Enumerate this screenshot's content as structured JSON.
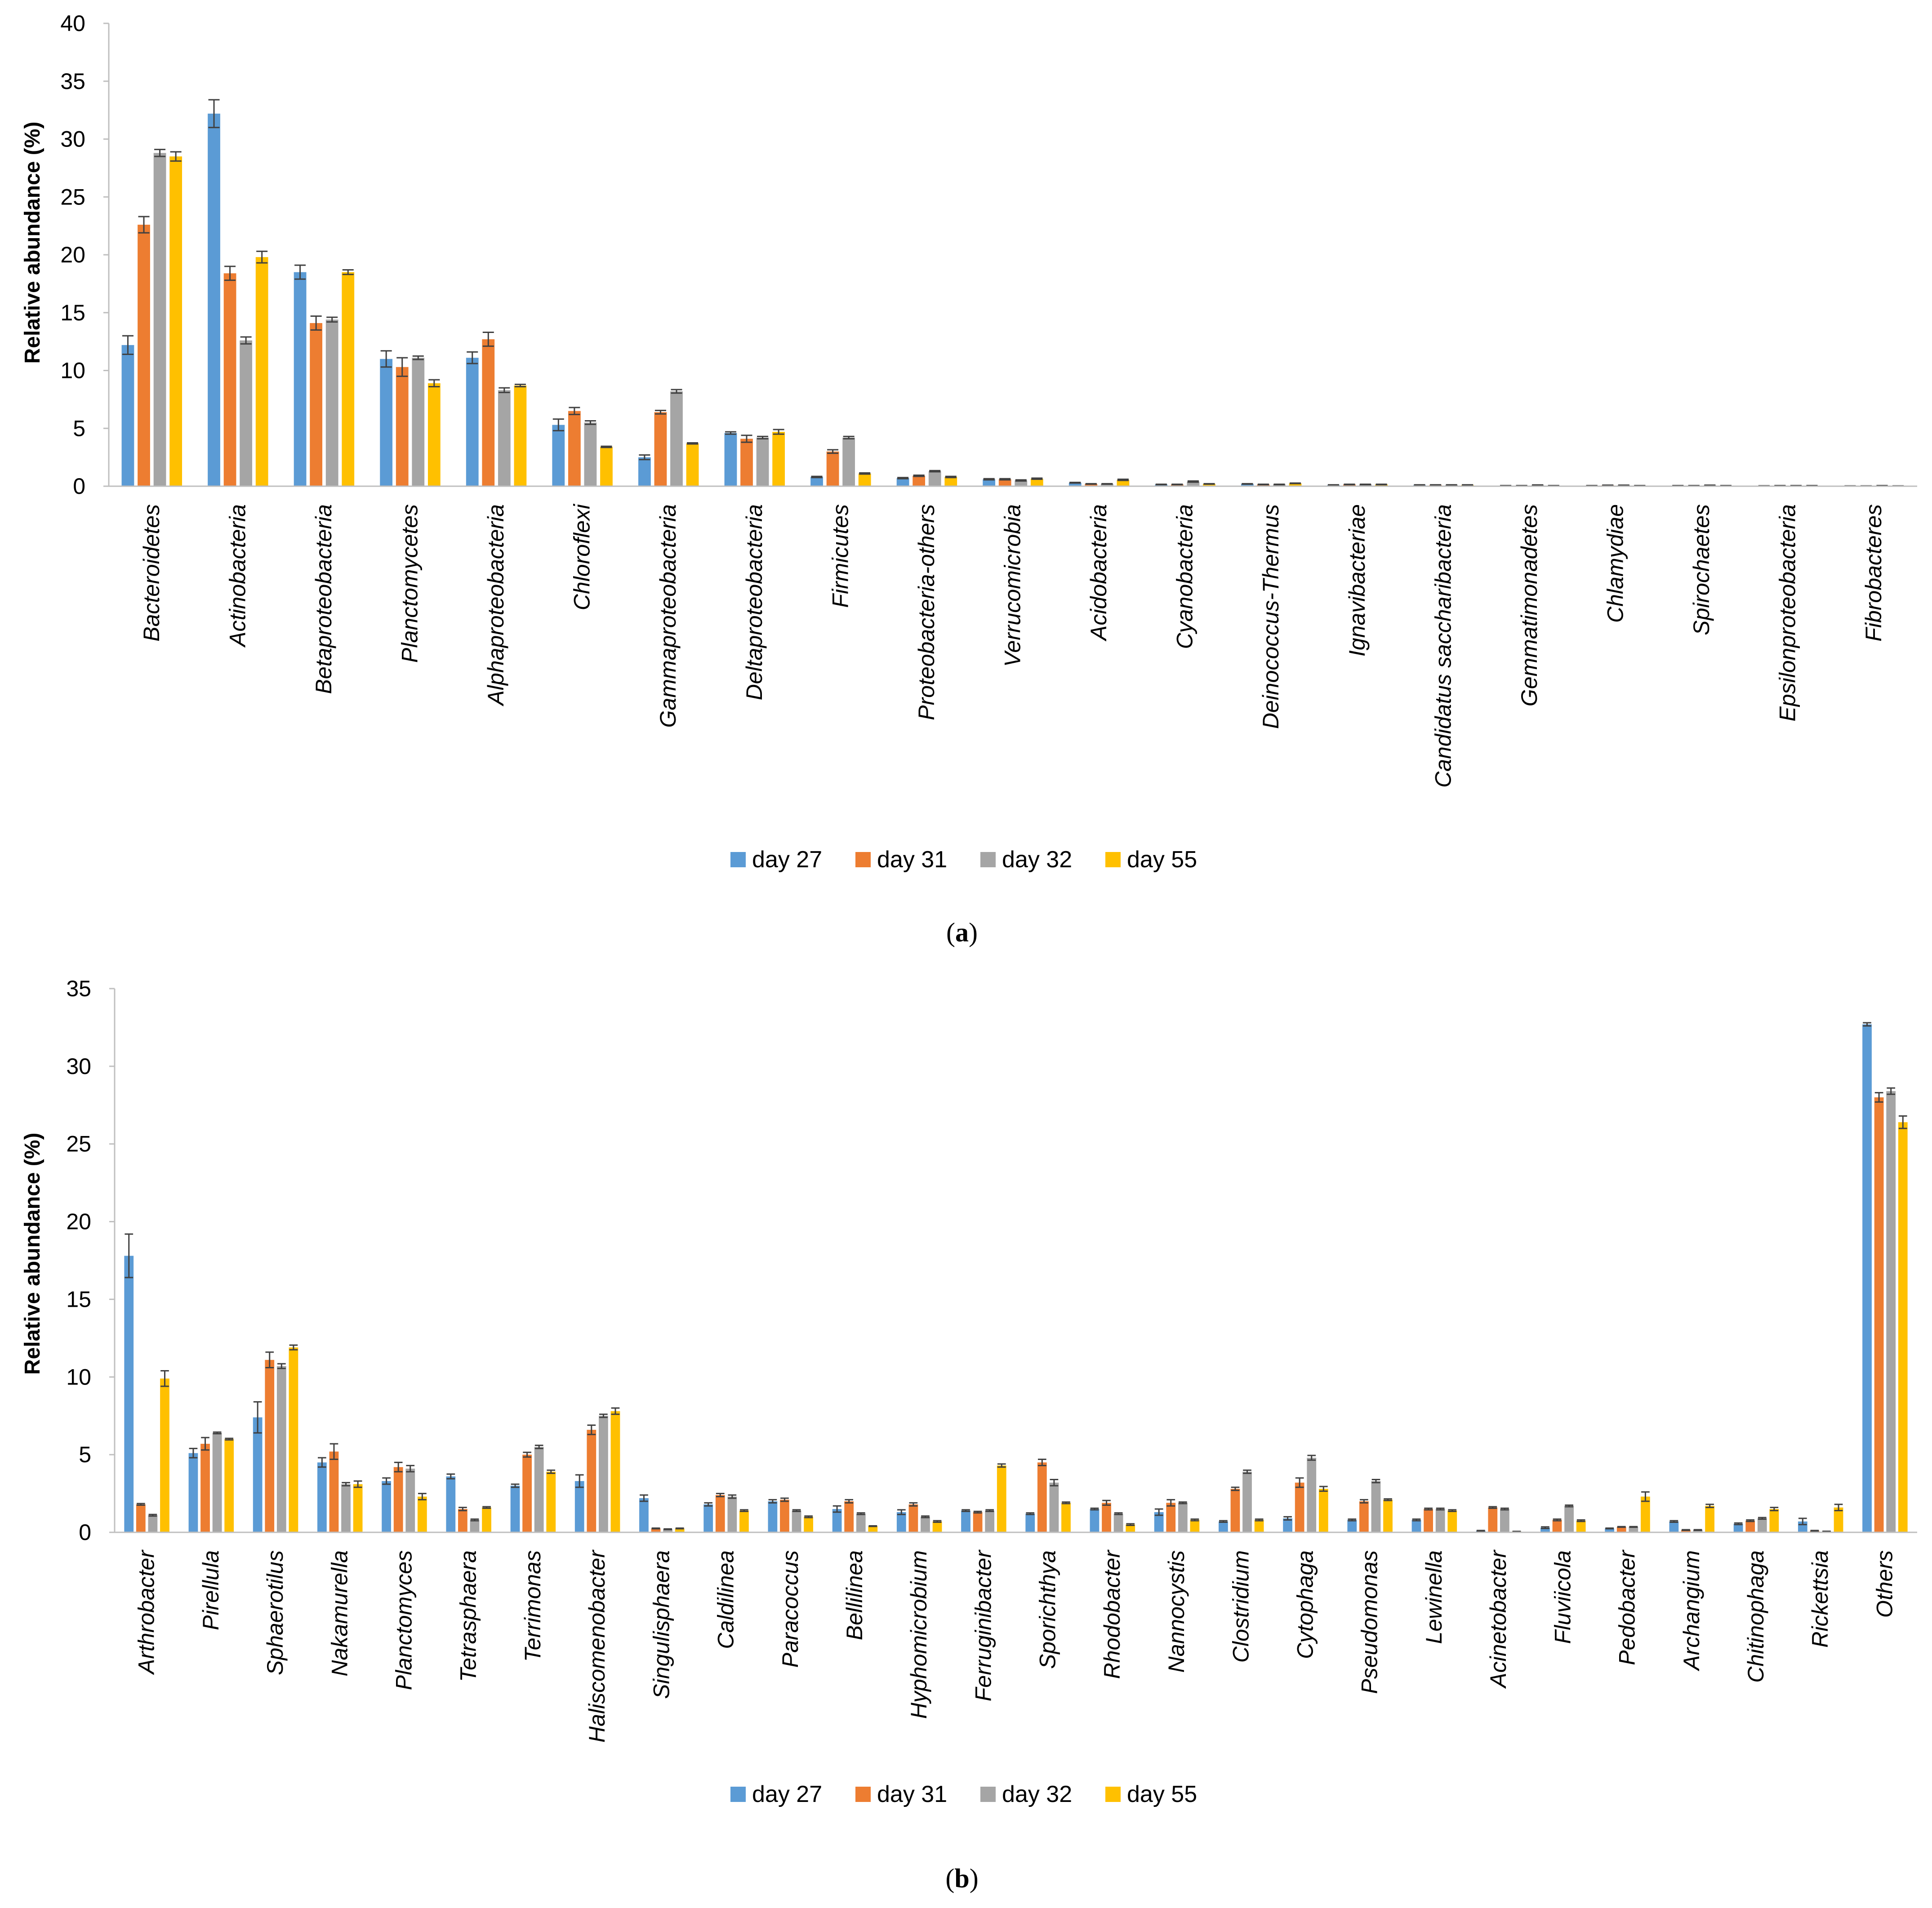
{
  "colors": {
    "day27": "#5b9bd5",
    "day31": "#ed7d31",
    "day32": "#a5a5a5",
    "day55": "#ffc000",
    "error": "#404040",
    "axis": "#bfbfbf"
  },
  "chart_data": [
    {
      "type": "bar",
      "panel": "a",
      "panel_label": {
        "open": "(",
        "letter": "a",
        "close": ")"
      },
      "ylabel": "Relative abundance (%)",
      "ylim": [
        0,
        40
      ],
      "yticks": [
        "0",
        "5",
        "10",
        "15",
        "20",
        "25",
        "30",
        "35",
        "40"
      ],
      "legend": [
        "day 27",
        "day 31",
        "day 32",
        "day 55"
      ],
      "categories": [
        "Bacteroidetes",
        "Actinobacteria",
        "Betaproteobacteria",
        "Planctomycetes",
        "Alphaproteobacteria",
        "Chloroflexi",
        "Gammaproteobacteria",
        "Deltaproteobacteria",
        "Firmicutes",
        "Proteobacteria-others",
        "Verrucomicrobia",
        "Acidobacteria",
        "Cyanobacteria",
        "Deinococcus-Thermus",
        "Ignavibacteriae",
        "Candidatus saccharibacteria",
        "Gemmatimonadetes",
        "Chlamydiae",
        "Spirochaetes",
        "Epsilonproteobacteria",
        "Fibrobacteres"
      ],
      "series": [
        {
          "name": "day 27",
          "values": [
            12.2,
            32.2,
            18.5,
            11.0,
            11.1,
            5.3,
            2.5,
            4.6,
            0.8,
            0.7,
            0.6,
            0.3,
            0.15,
            0.2,
            0.1,
            0.1,
            0.05,
            0.05,
            0.05,
            0.03,
            0.02
          ],
          "errors": [
            0.8,
            1.2,
            0.6,
            0.7,
            0.5,
            0.5,
            0.2,
            0.1,
            0.05,
            0.05,
            0.05,
            0.03,
            0.02,
            0.02,
            0.02,
            0.02,
            0.01,
            0.01,
            0.01,
            0.01,
            0.01
          ]
        },
        {
          "name": "day 31",
          "values": [
            22.6,
            18.4,
            14.1,
            10.3,
            12.7,
            6.5,
            6.4,
            4.1,
            3.0,
            0.9,
            0.6,
            0.2,
            0.15,
            0.15,
            0.15,
            0.1,
            0.05,
            0.08,
            0.05,
            0.05,
            0.02
          ],
          "errors": [
            0.7,
            0.6,
            0.6,
            0.8,
            0.6,
            0.3,
            0.15,
            0.3,
            0.15,
            0.05,
            0.05,
            0.02,
            0.02,
            0.02,
            0.02,
            0.02,
            0.01,
            0.01,
            0.01,
            0.01,
            0.01
          ]
        },
        {
          "name": "day 32",
          "values": [
            28.8,
            12.6,
            14.4,
            11.1,
            8.3,
            5.5,
            8.2,
            4.2,
            4.2,
            1.3,
            0.5,
            0.2,
            0.4,
            0.15,
            0.15,
            0.1,
            0.1,
            0.08,
            0.08,
            0.05,
            0.05
          ],
          "errors": [
            0.3,
            0.3,
            0.2,
            0.15,
            0.2,
            0.15,
            0.15,
            0.1,
            0.1,
            0.05,
            0.05,
            0.02,
            0.05,
            0.02,
            0.02,
            0.02,
            0.01,
            0.01,
            0.01,
            0.01,
            0.01
          ]
        },
        {
          "name": "day 55",
          "values": [
            28.5,
            19.8,
            18.5,
            8.9,
            8.7,
            3.4,
            3.7,
            4.7,
            1.1,
            0.8,
            0.65,
            0.55,
            0.2,
            0.25,
            0.15,
            0.1,
            0.05,
            0.05,
            0.05,
            0.05,
            0.02
          ],
          "errors": [
            0.4,
            0.5,
            0.2,
            0.3,
            0.1,
            0.05,
            0.05,
            0.2,
            0.05,
            0.05,
            0.05,
            0.05,
            0.02,
            0.02,
            0.02,
            0.02,
            0.01,
            0.01,
            0.01,
            0.01,
            0.01
          ]
        }
      ]
    },
    {
      "type": "bar",
      "panel": "b",
      "panel_label": {
        "open": "(",
        "letter": "b",
        "close": ")"
      },
      "ylabel": "Relative abundance (%)",
      "ylim": [
        0,
        35
      ],
      "yticks": [
        "0",
        "5",
        "10",
        "15",
        "20",
        "25",
        "30",
        "35"
      ],
      "legend": [
        "day 27",
        "day 31",
        "day 32",
        "day 55"
      ],
      "categories": [
        "Arthrobacter",
        "Pirellula",
        "Sphaerotilus",
        "Nakamurella",
        "Planctomyces",
        "Tetrasphaera",
        "Terrimonas",
        "Haliscomenobacter",
        "Singulisphaera",
        "Caldilinea",
        "Paracoccus",
        "Bellilinea",
        "Hyphomicrobium",
        "Ferruginibacter",
        "Sporichthya",
        "Rhodobacter",
        "Nannocystis",
        "Clostridium",
        "Cytophaga",
        "Pseudomonas",
        "Lewinella",
        "Acinetobacter",
        "Fluviicola",
        "Pedobacter",
        "Archangium",
        "Chitinophaga",
        "Rickettsia",
        "Others"
      ],
      "series": [
        {
          "name": "day 27",
          "values": [
            17.8,
            5.1,
            7.4,
            4.5,
            3.3,
            3.6,
            3.0,
            3.3,
            2.2,
            1.8,
            2.0,
            1.5,
            1.3,
            1.4,
            1.2,
            1.5,
            1.3,
            0.7,
            0.9,
            0.8,
            0.8,
            0.1,
            0.3,
            0.25,
            0.7,
            0.55,
            0.7,
            32.7
          ],
          "errors": [
            1.4,
            0.3,
            1.0,
            0.3,
            0.2,
            0.15,
            0.1,
            0.4,
            0.2,
            0.1,
            0.1,
            0.2,
            0.15,
            0.05,
            0.05,
            0.05,
            0.2,
            0.05,
            0.1,
            0.05,
            0.05,
            0.02,
            0.05,
            0.02,
            0.05,
            0.05,
            0.2,
            0.1
          ]
        },
        {
          "name": "day 31",
          "values": [
            1.8,
            5.7,
            11.1,
            5.2,
            4.2,
            1.5,
            5.0,
            6.6,
            0.25,
            2.4,
            2.1,
            2.0,
            1.8,
            1.3,
            4.5,
            1.9,
            1.9,
            2.8,
            3.2,
            2.0,
            1.5,
            1.6,
            0.8,
            0.35,
            0.15,
            0.75,
            0.1,
            28.0
          ],
          "errors": [
            0.05,
            0.4,
            0.5,
            0.5,
            0.3,
            0.1,
            0.15,
            0.3,
            0.02,
            0.1,
            0.1,
            0.1,
            0.1,
            0.05,
            0.2,
            0.15,
            0.2,
            0.1,
            0.3,
            0.1,
            0.05,
            0.05,
            0.05,
            0.02,
            0.02,
            0.05,
            0.02,
            0.3
          ]
        },
        {
          "name": "day 32",
          "values": [
            1.1,
            6.4,
            10.7,
            3.1,
            4.1,
            0.8,
            5.5,
            7.5,
            0.2,
            2.3,
            1.4,
            1.2,
            1.0,
            1.4,
            3.2,
            1.2,
            1.9,
            3.9,
            4.8,
            3.3,
            1.5,
            1.5,
            1.7,
            0.35,
            0.15,
            0.9,
            0.05,
            28.4
          ],
          "errors": [
            0.05,
            0.05,
            0.15,
            0.1,
            0.2,
            0.05,
            0.1,
            0.1,
            0.02,
            0.1,
            0.05,
            0.05,
            0.05,
            0.05,
            0.2,
            0.05,
            0.05,
            0.1,
            0.15,
            0.1,
            0.05,
            0.05,
            0.05,
            0.02,
            0.02,
            0.05,
            0.02,
            0.2
          ]
        },
        {
          "name": "day 55",
          "values": [
            9.9,
            6.0,
            11.9,
            3.1,
            2.3,
            1.6,
            3.9,
            7.8,
            0.25,
            1.4,
            1.0,
            0.4,
            0.7,
            4.3,
            1.9,
            0.5,
            0.8,
            0.8,
            2.8,
            2.1,
            1.4,
            0.05,
            0.75,
            2.3,
            1.7,
            1.5,
            1.6,
            26.4
          ],
          "errors": [
            0.5,
            0.05,
            0.15,
            0.2,
            0.2,
            0.05,
            0.1,
            0.2,
            0.02,
            0.05,
            0.05,
            0.02,
            0.05,
            0.1,
            0.05,
            0.05,
            0.05,
            0.05,
            0.15,
            0.05,
            0.05,
            0.01,
            0.05,
            0.3,
            0.1,
            0.1,
            0.2,
            0.4
          ]
        }
      ]
    }
  ]
}
